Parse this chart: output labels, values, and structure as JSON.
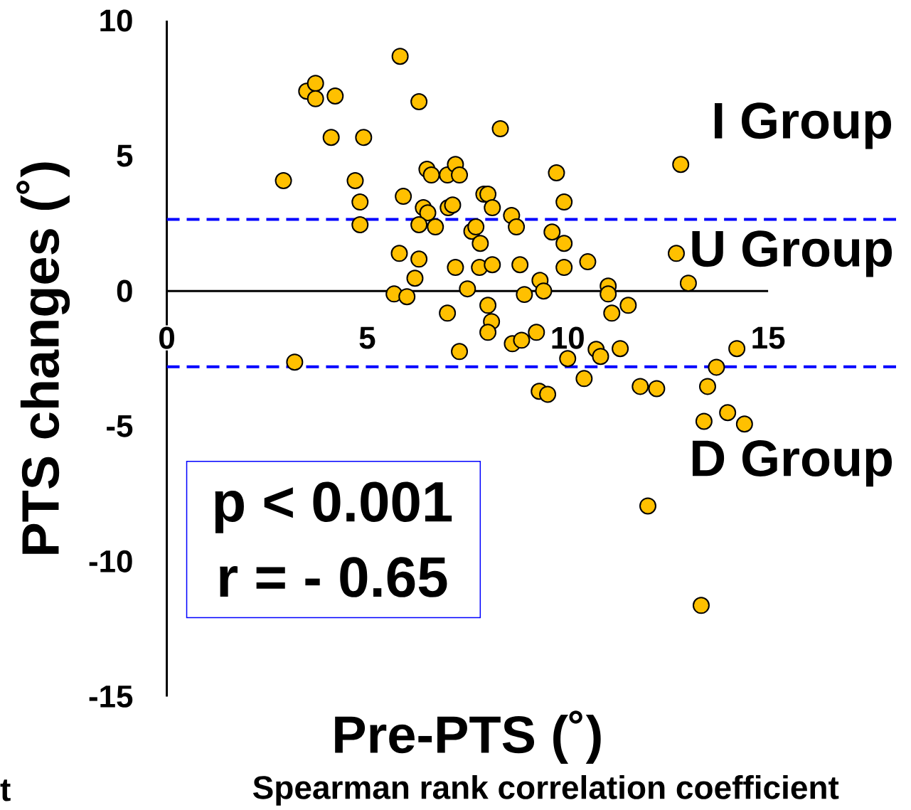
{
  "chart_data": {
    "type": "scatter",
    "xlabel": "Pre-PTS (˚)",
    "ylabel": "PTS changes (˚)",
    "x": [
      2.91,
      3.49,
      3.71,
      3.71,
      4.2,
      4.1,
      4.91,
      4.7,
      4.82,
      4.82,
      3.19,
      5.82,
      6.29,
      5.9,
      6.4,
      6.51,
      6.29,
      6.7,
      6.49,
      6.6,
      7.0,
      7.2,
      7.3,
      7.02,
      7.13,
      5.8,
      6.29,
      6.19,
      5.67,
      5.99,
      7.2,
      7.5,
      7.0,
      7.3,
      7.61,
      7.71,
      7.82,
      7.91,
      8.01,
      8.12,
      8.32,
      7.8,
      8.12,
      8.01,
      8.1,
      8.01,
      8.6,
      8.72,
      8.81,
      8.92,
      8.62,
      8.85,
      9.22,
      9.29,
      9.5,
      9.31,
      9.4,
      9.61,
      9.72,
      9.91,
      9.91,
      9.91,
      10.0,
      10.41,
      10.5,
      10.71,
      10.82,
      11.01,
      11.01,
      11.1,
      11.31,
      11.51,
      11.81,
      12.22,
      12.0,
      12.82,
      12.71,
      13.01,
      13.33,
      13.4,
      13.49,
      13.71,
      13.99,
      14.22,
      14.41
    ],
    "values": [
      4.08,
      7.39,
      7.68,
      7.11,
      7.21,
      5.68,
      5.68,
      4.08,
      3.29,
      2.45,
      -2.63,
      8.68,
      7.0,
      3.5,
      3.08,
      2.89,
      2.45,
      2.37,
      4.5,
      4.29,
      4.29,
      4.68,
      4.29,
      3.08,
      3.18,
      1.39,
      1.18,
      0.47,
      -0.11,
      -0.21,
      0.87,
      0.08,
      -0.82,
      -2.24,
      2.21,
      2.37,
      1.76,
      3.58,
      3.58,
      3.08,
      6.0,
      0.87,
      0.97,
      -0.53,
      -1.13,
      -1.53,
      2.79,
      2.37,
      0.97,
      -0.13,
      -1.95,
      -1.82,
      -1.53,
      -3.71,
      -3.82,
      0.39,
      0.0,
      2.18,
      4.37,
      3.29,
      1.76,
      0.87,
      -2.5,
      -3.24,
      1.08,
      -2.16,
      -2.42,
      0.18,
      -0.11,
      -0.82,
      -2.13,
      -0.53,
      -3.53,
      -3.61,
      -7.95,
      4.68,
      1.39,
      0.29,
      -11.63,
      -4.82,
      -3.53,
      -2.82,
      -4.5,
      -2.13,
      -4.92
    ],
    "color": "#ffc000",
    "xlim": [
      0,
      15
    ],
    "ylim": [
      -15,
      10
    ],
    "xticks": [
      0,
      5,
      10,
      15
    ],
    "yticks": [
      -15,
      -10,
      -5,
      0,
      5,
      10
    ],
    "ref_lines": [
      {
        "axis": "y",
        "value": 2.65,
        "color": "#0000ff",
        "line_style": "dashed"
      },
      {
        "axis": "y",
        "value": -2.8,
        "color": "#0000ff",
        "line_style": "dashed"
      }
    ],
    "annotations": [
      "I Group",
      "U Group",
      "D Group",
      "p < 0.001",
      "r = - 0.65",
      "Spearman rank correlation coefficient",
      "t"
    ]
  }
}
